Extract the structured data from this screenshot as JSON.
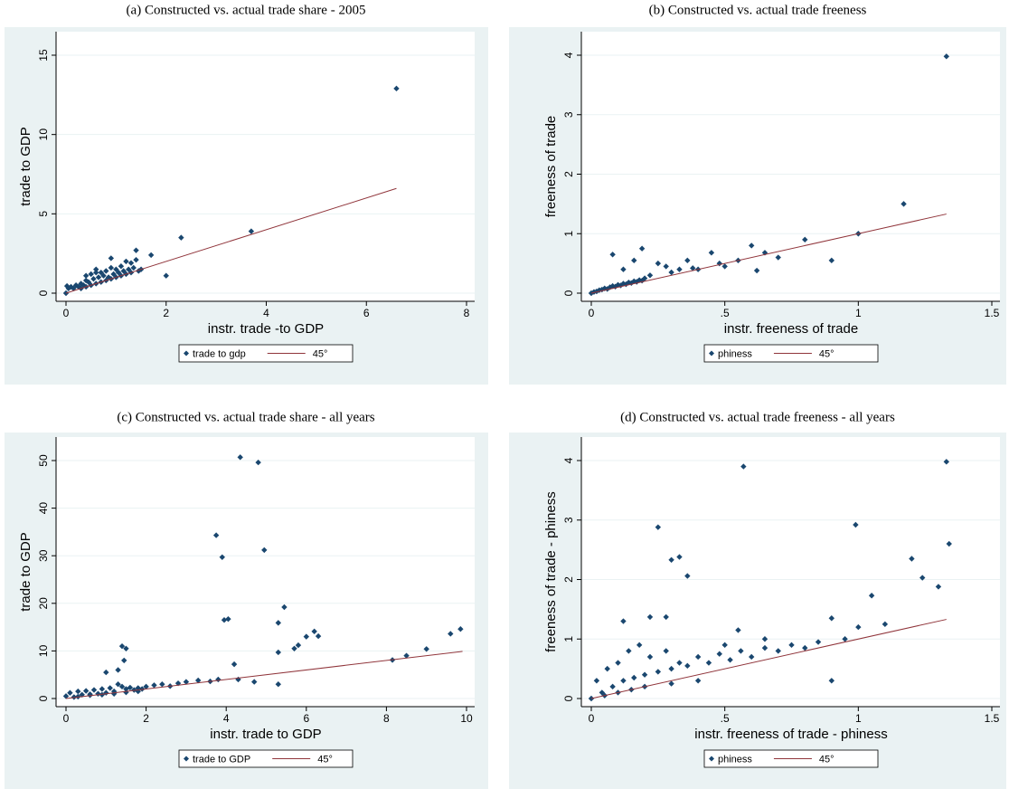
{
  "chart_data": [
    {
      "type": "scatter",
      "title": "(a) Constructed vs. actual trade share - 2005",
      "x_label": "instr. trade -to GDP",
      "y_label": "trade to GDP",
      "xlim": [
        0,
        8
      ],
      "ylim": [
        0,
        15
      ],
      "xticks": [
        0,
        2,
        4,
        6,
        8
      ],
      "yticks": [
        0,
        5,
        10,
        15
      ],
      "grid": true,
      "legend": "bottom",
      "series": [
        {
          "name": "trade to gdp",
          "type": "scatter",
          "color": "#1a476f",
          "x": [
            0,
            0.02,
            0.05,
            0.1,
            0.15,
            0.2,
            0.25,
            0.3,
            0.3,
            0.35,
            0.4,
            0.4,
            0.45,
            0.5,
            0.5,
            0.55,
            0.6,
            0.6,
            0.65,
            0.7,
            0.7,
            0.75,
            0.8,
            0.8,
            0.85,
            0.9,
            0.9,
            0.95,
            1.0,
            1.0,
            1.05,
            1.1,
            1.1,
            1.15,
            1.2,
            1.2,
            1.25,
            1.3,
            1.3,
            1.35,
            1.4,
            1.45,
            1.5,
            0.4,
            0.6,
            0.9,
            1.4,
            1.7,
            2.0,
            2.3,
            3.7,
            6.6
          ],
          "values": [
            0,
            0.45,
            0.3,
            0.4,
            0.3,
            0.5,
            0.4,
            0.6,
            0.3,
            0.5,
            0.8,
            0.4,
            0.7,
            1.2,
            0.5,
            0.9,
            1.5,
            0.6,
            1.0,
            1.3,
            0.7,
            1.1,
            1.4,
            0.8,
            1.0,
            1.6,
            0.9,
            1.2,
            1.5,
            1.0,
            1.3,
            1.7,
            1.1,
            1.4,
            2.0,
            1.2,
            1.5,
            1.9,
            1.3,
            1.6,
            2.7,
            1.4,
            1.5,
            1.1,
            1.3,
            2.2,
            2.1,
            2.4,
            1.1,
            3.5,
            3.9,
            12.9
          ]
        },
        {
          "name": "45°",
          "type": "line",
          "color": "#90353b",
          "x": [
            0,
            6.6
          ],
          "values": [
            0,
            6.6
          ]
        }
      ]
    },
    {
      "type": "scatter",
      "title": "(b) Constructed vs. actual trade freeness",
      "x_label": "instr. freeness of trade",
      "y_label": "freeness of trade",
      "xlim": [
        0,
        1.5
      ],
      "ylim": [
        0,
        4
      ],
      "xticks": [
        0,
        {
          "value": 0.5,
          "label": ".5"
        },
        1,
        1.5
      ],
      "yticks": [
        0,
        1,
        2,
        3,
        4
      ],
      "grid": true,
      "legend": "bottom",
      "series": [
        {
          "name": "phiness",
          "type": "scatter",
          "color": "#1a476f",
          "x": [
            0,
            0.01,
            0.02,
            0.03,
            0.04,
            0.05,
            0.06,
            0.07,
            0.08,
            0.09,
            0.1,
            0.11,
            0.12,
            0.13,
            0.14,
            0.15,
            0.16,
            0.17,
            0.18,
            0.19,
            0.2,
            0.08,
            0.12,
            0.16,
            0.19,
            0.22,
            0.25,
            0.28,
            0.3,
            0.33,
            0.36,
            0.38,
            0.4,
            0.45,
            0.48,
            0.5,
            0.55,
            0.6,
            0.62,
            0.65,
            0.7,
            0.8,
            0.9,
            1.0,
            1.17,
            1.33
          ],
          "values": [
            0,
            0.02,
            0.03,
            0.05,
            0.06,
            0.08,
            0.07,
            0.1,
            0.12,
            0.11,
            0.14,
            0.13,
            0.16,
            0.15,
            0.18,
            0.17,
            0.2,
            0.19,
            0.22,
            0.21,
            0.25,
            0.65,
            0.4,
            0.55,
            0.75,
            0.3,
            0.5,
            0.45,
            0.35,
            0.4,
            0.55,
            0.42,
            0.4,
            0.68,
            0.5,
            0.45,
            0.55,
            0.8,
            0.38,
            0.68,
            0.6,
            0.9,
            0.55,
            1.0,
            1.5,
            3.98
          ]
        },
        {
          "name": "45°",
          "type": "line",
          "color": "#90353b",
          "x": [
            0,
            1.33
          ],
          "values": [
            0,
            1.33
          ]
        }
      ]
    },
    {
      "type": "scatter",
      "title": "(c) Constructed vs. actual trade share - all years",
      "x_label": "instr. trade to GDP",
      "y_label": "trade to GDP",
      "xlim": [
        0,
        10
      ],
      "ylim": [
        0,
        50
      ],
      "xticks": [
        0,
        2,
        4,
        6,
        8,
        10
      ],
      "yticks": [
        0,
        10,
        20,
        30,
        40,
        50
      ],
      "grid": true,
      "legend": "bottom",
      "series": [
        {
          "name": "trade to GDP",
          "type": "scatter",
          "color": "#1a476f",
          "x": [
            0,
            0.1,
            0.2,
            0.3,
            0.4,
            0.5,
            0.6,
            0.7,
            0.8,
            0.9,
            1.0,
            1.1,
            1.2,
            1.3,
            1.4,
            1.5,
            1.6,
            1.7,
            1.8,
            1.9,
            2.0,
            2.2,
            2.4,
            2.6,
            2.8,
            3.0,
            3.3,
            3.6,
            0.3,
            0.6,
            0.9,
            1.2,
            1.5,
            1.8,
            4.35,
            4.8,
            3.75,
            3.9,
            4.95,
            3.95,
            4.05,
            5.45,
            5.3,
            5.3,
            5.7,
            5.8,
            6.0,
            6.2,
            6.3,
            8.15,
            8.5,
            9.0,
            9.6,
            9.85,
            1.4,
            1.5,
            1.45,
            1.3,
            1.0,
            4.2,
            4.3,
            5.3,
            4.7,
            3.8
          ],
          "values": [
            0.5,
            1.2,
            0.3,
            1.5,
            0.8,
            1.6,
            0.9,
            1.8,
            1.0,
            2.0,
            1.2,
            2.2,
            1.5,
            3.0,
            2.5,
            2.0,
            2.3,
            1.8,
            2.2,
            2.0,
            2.5,
            2.8,
            3.0,
            2.6,
            3.2,
            3.5,
            3.8,
            3.6,
            0.4,
            0.7,
            0.8,
            1.0,
            1.3,
            1.5,
            50.7,
            49.6,
            34.3,
            29.7,
            31.2,
            16.5,
            16.7,
            19.2,
            15.9,
            9.7,
            10.5,
            11.2,
            13.0,
            14.1,
            13.1,
            8.1,
            9.0,
            10.4,
            13.6,
            14.6,
            11.0,
            10.5,
            8.0,
            6.0,
            5.5,
            7.2,
            4.0,
            3.0,
            3.5,
            4.0
          ]
        },
        {
          "name": "45°",
          "type": "line",
          "color": "#90353b",
          "x": [
            0,
            9.9
          ],
          "values": [
            0,
            9.9
          ]
        }
      ]
    },
    {
      "type": "scatter",
      "title": "(d) Constructed vs. actual trade freeness - all years",
      "x_label": "instr. freeness of trade - phiness",
      "y_label": "freeness of trade - phiness",
      "xlim": [
        0,
        1.5
      ],
      "ylim": [
        0,
        4
      ],
      "xticks": [
        0,
        {
          "value": 0.5,
          "label": ".5"
        },
        1,
        1.5
      ],
      "yticks": [
        0,
        1,
        2,
        3,
        4
      ],
      "grid": true,
      "legend": "bottom",
      "series": [
        {
          "name": "phiness",
          "type": "scatter",
          "color": "#1a476f",
          "x": [
            0,
            0.02,
            0.04,
            0.06,
            0.08,
            0.1,
            0.12,
            0.14,
            0.16,
            0.18,
            0.2,
            0.22,
            0.25,
            0.28,
            0.3,
            0.33,
            0.36,
            0.4,
            0.44,
            0.48,
            0.52,
            0.56,
            0.6,
            0.65,
            0.7,
            0.75,
            0.8,
            0.85,
            0.95,
            0.05,
            0.1,
            0.15,
            0.2,
            0.3,
            0.4,
            0.57,
            0.25,
            0.99,
            1.33,
            1.34,
            0.3,
            0.33,
            0.36,
            1.2,
            1.24,
            1.3,
            1.05,
            0.22,
            0.28,
            0.12,
            0.55,
            0.9,
            1.0,
            1.1,
            0.9,
            0.5,
            0.65
          ],
          "values": [
            0,
            0.3,
            0.1,
            0.5,
            0.2,
            0.6,
            0.3,
            0.8,
            0.35,
            0.9,
            0.4,
            0.7,
            0.45,
            0.8,
            0.5,
            0.6,
            0.55,
            0.7,
            0.6,
            0.75,
            0.65,
            0.8,
            0.7,
            0.85,
            0.8,
            0.9,
            0.85,
            0.95,
            1.0,
            0.05,
            0.1,
            0.15,
            0.2,
            0.25,
            0.3,
            3.9,
            2.88,
            2.92,
            3.98,
            2.6,
            2.33,
            2.38,
            2.06,
            2.35,
            2.03,
            1.88,
            1.73,
            1.37,
            1.37,
            1.3,
            1.15,
            1.35,
            1.2,
            1.25,
            0.3,
            0.9,
            1.0
          ]
        },
        {
          "name": "45°",
          "type": "line",
          "color": "#90353b",
          "x": [
            0,
            1.33
          ],
          "values": [
            0,
            1.33
          ]
        }
      ]
    }
  ]
}
